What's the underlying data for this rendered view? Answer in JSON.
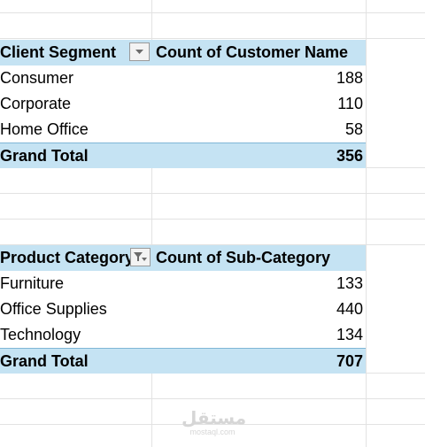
{
  "pivot_segment": {
    "header_col1": "Client Segment",
    "header_col2": "Count of Customer Name",
    "filter_icon": "dropdown-arrow-icon",
    "rows": [
      {
        "label": "Consumer",
        "value": "188"
      },
      {
        "label": "Corporate",
        "value": "110"
      },
      {
        "label": "Home Office",
        "value": "58"
      }
    ],
    "total_label": "Grand Total",
    "total_value": "356"
  },
  "pivot_category": {
    "header_col1": "Product Category",
    "header_col2": "Count of Sub-Category",
    "filter_icon": "filter-applied-icon",
    "rows": [
      {
        "label": "Furniture",
        "value": "133"
      },
      {
        "label": "Office Supplies",
        "value": "440"
      },
      {
        "label": "Technology",
        "value": "134"
      }
    ],
    "total_label": "Grand Total",
    "total_value": "707"
  },
  "watermark": {
    "arabic": "مستقل",
    "latin": "mostaql.com"
  },
  "colors": {
    "header_fill": "#c5e3f3",
    "total_border": "#7fb6d6",
    "gridline": "#e2e2e2"
  }
}
